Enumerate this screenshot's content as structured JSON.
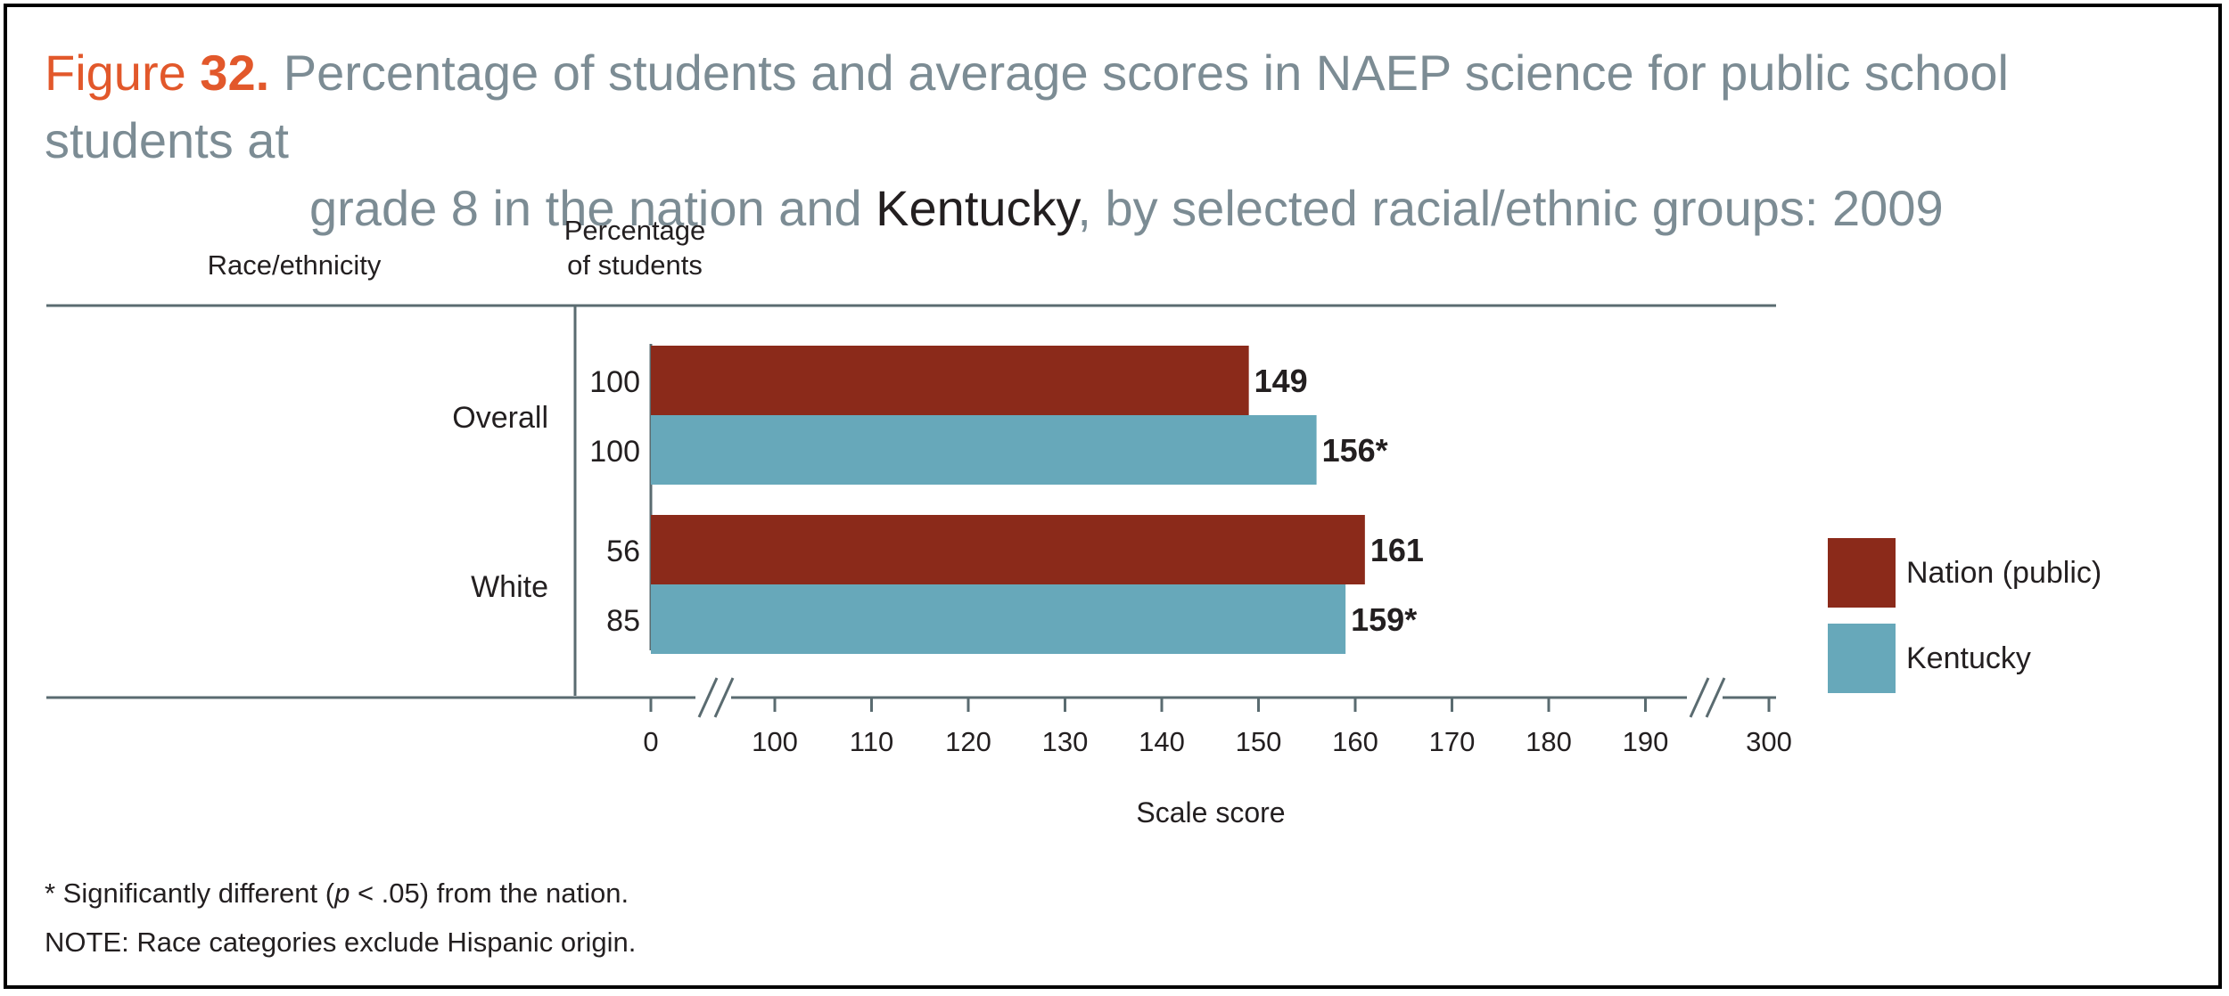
{
  "title": {
    "figure_word": "Figure",
    "figure_number": "32.",
    "line1": "Percentage of students and average scores in NAEP science for public school students at",
    "line2_pre": "grade 8 in the nation and",
    "line2_highlight": "Kentucky",
    "line2_post": ", by selected racial/ethnic groups: 2009"
  },
  "headers": {
    "race": "Race/ethnicity",
    "pct_line1": "Percentage",
    "pct_line2": "of students"
  },
  "footnotes": {
    "sig_prefix": "* Significantly different (",
    "sig_p": "p",
    "sig_suffix": " < .05) from the nation.",
    "note": "NOTE: Race categories exclude Hispanic origin."
  },
  "colors": {
    "nation": "#8b2a1a",
    "kentucky": "#67a8ba",
    "axis": "#5a6b70",
    "text": "#231f20"
  },
  "chart_data": {
    "type": "bar",
    "orientation": "horizontal",
    "xlabel": "Scale score",
    "x_ticks": [
      "0",
      "100",
      "110",
      "120",
      "130",
      "140",
      "150",
      "160",
      "170",
      "180",
      "190",
      "300"
    ],
    "axis_break": true,
    "xlim": [
      0,
      300
    ],
    "categories": [
      "Overall",
      "White"
    ],
    "series": [
      {
        "name": "Nation (public)",
        "values": [
          149,
          161
        ],
        "labels": [
          "149",
          "161"
        ],
        "percent_of_students": [
          "100",
          "56"
        ]
      },
      {
        "name": "Kentucky",
        "values": [
          156,
          159
        ],
        "labels": [
          "156*",
          "159*"
        ],
        "percent_of_students": [
          "100",
          "85"
        ]
      }
    ],
    "legend_position": "right"
  }
}
